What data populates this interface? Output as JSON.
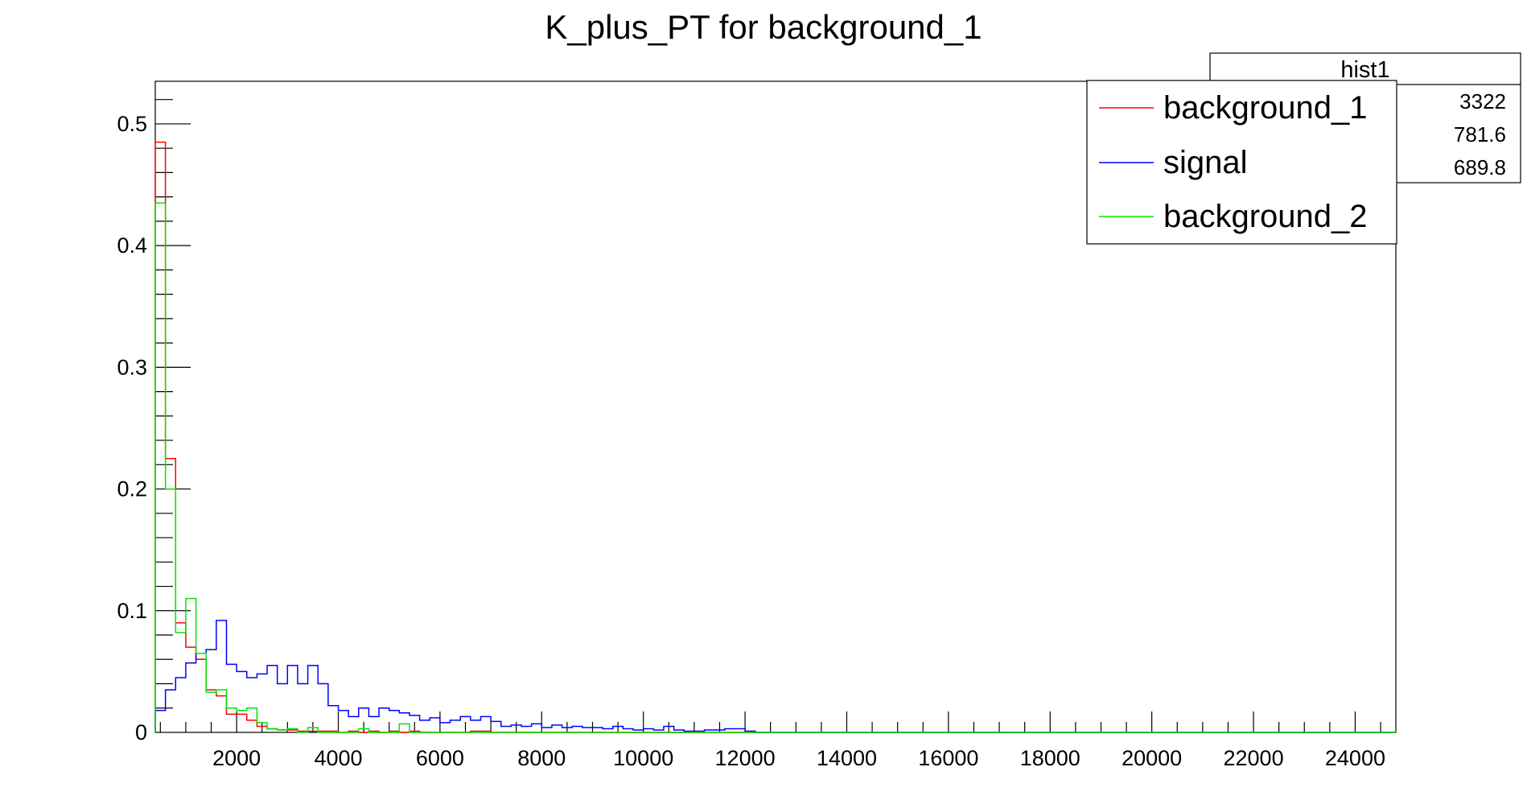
{
  "chart_data": {
    "type": "line",
    "title": "K_plus_PT for background_1",
    "xlabel": "",
    "ylabel": "",
    "xlim": [
      400,
      24800
    ],
    "ylim": [
      0,
      0.535
    ],
    "bin_width": 200,
    "x_ticks": [
      2000,
      4000,
      6000,
      8000,
      10000,
      12000,
      14000,
      16000,
      18000,
      20000,
      22000,
      24000
    ],
    "x_tick_labels": [
      "2000",
      "4000",
      "6000",
      "8000",
      "10000",
      "12000",
      "14000",
      "16000",
      "18000",
      "20000",
      "22000",
      "24000"
    ],
    "y_ticks": [
      0,
      0.1,
      0.2,
      0.3,
      0.4,
      0.5
    ],
    "y_tick_labels": [
      "0",
      "0.1",
      "0.2",
      "0.3",
      "0.4",
      "0.5"
    ],
    "grid": false,
    "legend_position": "top-right",
    "series": [
      {
        "name": "background_1",
        "color": "#ff0000",
        "values": [
          0.485,
          0.225,
          0.09,
          0.07,
          0.06,
          0.035,
          0.03,
          0.015,
          0.015,
          0.01,
          0.005,
          0.003,
          0.002,
          0.002,
          0.001,
          0.001,
          0.001,
          0.001,
          0,
          0.001,
          0,
          0.001,
          0,
          0.001,
          0,
          0.001,
          0,
          0,
          0,
          0,
          0,
          0.001,
          0.001,
          0,
          0,
          0,
          0,
          0,
          0,
          0,
          0,
          0,
          0,
          0,
          0,
          0,
          0,
          0,
          0,
          0,
          0,
          0,
          0,
          0,
          0,
          0,
          0,
          0,
          0,
          0,
          0,
          0,
          0,
          0,
          0,
          0,
          0,
          0,
          0,
          0,
          0,
          0,
          0,
          0,
          0,
          0,
          0,
          0,
          0,
          0,
          0,
          0,
          0,
          0,
          0,
          0,
          0,
          0,
          0,
          0,
          0,
          0,
          0,
          0,
          0,
          0,
          0,
          0,
          0,
          0,
          0,
          0,
          0,
          0,
          0,
          0,
          0,
          0,
          0,
          0,
          0,
          0,
          0,
          0,
          0,
          0,
          0,
          0,
          0,
          0,
          0,
          0
        ]
      },
      {
        "name": "signal",
        "color": "#0000ff",
        "values": [
          0.018,
          0.035,
          0.045,
          0.057,
          0.065,
          0.068,
          0.092,
          0.056,
          0.05,
          0.045,
          0.048,
          0.055,
          0.04,
          0.055,
          0.04,
          0.055,
          0.04,
          0.022,
          0.018,
          0.013,
          0.02,
          0.013,
          0.02,
          0.018,
          0.016,
          0.014,
          0.01,
          0.012,
          0.008,
          0.01,
          0.013,
          0.01,
          0.013,
          0.009,
          0.005,
          0.006,
          0.005,
          0.007,
          0.004,
          0.006,
          0.004,
          0.005,
          0.004,
          0.004,
          0.003,
          0.005,
          0.003,
          0.002,
          0.003,
          0.002,
          0.005,
          0.002,
          0.001,
          0.001,
          0.002,
          0.002,
          0.003,
          0.003,
          0.001,
          0,
          0,
          0,
          0,
          0,
          0,
          0,
          0,
          0,
          0,
          0,
          0,
          0,
          0,
          0,
          0,
          0,
          0,
          0,
          0,
          0,
          0,
          0,
          0,
          0,
          0,
          0,
          0,
          0,
          0,
          0,
          0,
          0,
          0,
          0,
          0,
          0,
          0,
          0,
          0,
          0,
          0,
          0,
          0,
          0,
          0,
          0,
          0,
          0,
          0,
          0,
          0,
          0,
          0,
          0,
          0,
          0,
          0,
          0,
          0,
          0,
          0,
          0
        ]
      },
      {
        "name": "background_2",
        "color": "#00e600",
        "values": [
          0.435,
          0.2,
          0.082,
          0.11,
          0.065,
          0.033,
          0.035,
          0.02,
          0.018,
          0.02,
          0.008,
          0.003,
          0.002,
          0.003,
          0,
          0.004,
          0,
          0,
          0,
          0,
          0.003,
          0,
          0,
          0,
          0.007,
          0,
          0,
          0,
          0,
          0,
          0,
          0,
          0,
          0,
          0,
          0,
          0,
          0,
          0,
          0,
          0,
          0,
          0,
          0,
          0,
          0,
          0,
          0,
          0,
          0,
          0,
          0,
          0,
          0,
          0,
          0,
          0,
          0,
          0,
          0,
          0,
          0,
          0,
          0,
          0,
          0,
          0,
          0,
          0,
          0,
          0,
          0,
          0,
          0,
          0,
          0,
          0,
          0,
          0,
          0,
          0,
          0,
          0,
          0,
          0,
          0,
          0,
          0,
          0,
          0,
          0,
          0,
          0,
          0,
          0,
          0,
          0,
          0,
          0,
          0,
          0,
          0,
          0,
          0,
          0,
          0,
          0,
          0,
          0,
          0,
          0,
          0,
          0,
          0,
          0,
          0,
          0,
          0,
          0,
          0,
          0,
          0
        ]
      }
    ],
    "stats_box": {
      "title": "hist1",
      "values": [
        "3322",
        "781.6",
        "689.8"
      ]
    }
  }
}
